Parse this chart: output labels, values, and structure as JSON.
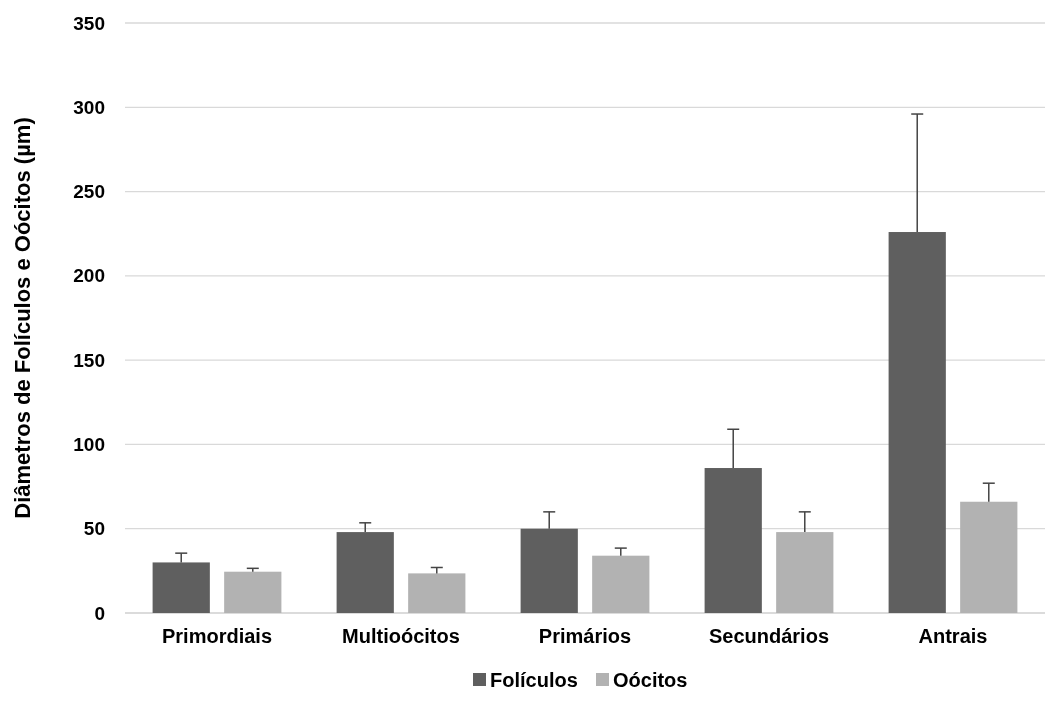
{
  "chart_data": {
    "type": "bar",
    "ylabel": "Diâmetros de Folículos e Oócitos (µm)",
    "categories": [
      "Primordiais",
      "Multioócitos",
      "Primários",
      "Secundários",
      "Antrais"
    ],
    "series": [
      {
        "name": "Folículos",
        "color": "#5f5f5f",
        "values": [
          30,
          48,
          50,
          86,
          226
        ],
        "errors": [
          5.5,
          5.5,
          10,
          23,
          70
        ]
      },
      {
        "name": "Oócitos",
        "color": "#b2b2b2",
        "values": [
          24.5,
          23.5,
          34,
          48,
          66
        ],
        "errors": [
          2,
          3.5,
          4.5,
          12,
          11
        ]
      }
    ],
    "ylim": [
      0,
      350
    ],
    "yticks": [
      0,
      50,
      100,
      150,
      200,
      250,
      300,
      350
    ],
    "grid": "y",
    "legend": "bottom"
  }
}
